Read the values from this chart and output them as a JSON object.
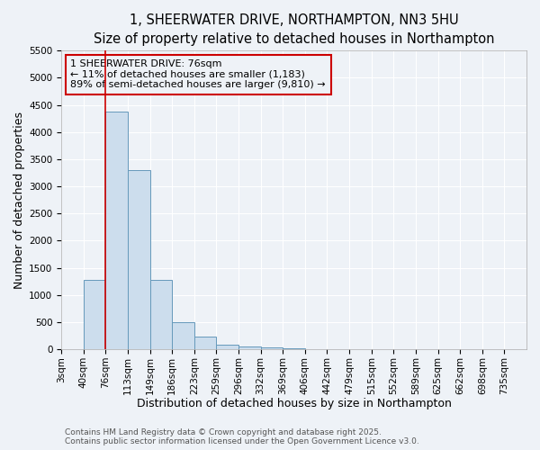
{
  "title_line1": "1, SHEERWATER DRIVE, NORTHAMPTON, NN3 5HU",
  "title_line2": "Size of property relative to detached houses in Northampton",
  "xlabel": "Distribution of detached houses by size in Northampton",
  "ylabel": "Number of detached properties",
  "annotation_line1": "1 SHEERWATER DRIVE: 76sqm",
  "annotation_line2": "← 11% of detached houses are smaller (1,183)",
  "annotation_line3": "89% of semi-detached houses are larger (9,810) →",
  "bin_labels": [
    "3sqm",
    "40sqm",
    "76sqm",
    "113sqm",
    "149sqm",
    "186sqm",
    "223sqm",
    "259sqm",
    "296sqm",
    "332sqm",
    "369sqm",
    "406sqm",
    "442sqm",
    "479sqm",
    "515sqm",
    "552sqm",
    "589sqm",
    "625sqm",
    "662sqm",
    "698sqm",
    "735sqm"
  ],
  "bar_values": [
    0,
    1280,
    4380,
    3300,
    1280,
    500,
    230,
    90,
    55,
    40,
    10,
    0,
    0,
    0,
    0,
    0,
    0,
    0,
    0,
    0,
    0
  ],
  "bar_color": "#ccdded",
  "bar_edge_color": "#6699bb",
  "red_line_index": 2,
  "red_line_color": "#cc0000",
  "ylim": [
    0,
    5500
  ],
  "yticks": [
    0,
    500,
    1000,
    1500,
    2000,
    2500,
    3000,
    3500,
    4000,
    4500,
    5000,
    5500
  ],
  "bg_color": "#eef2f7",
  "grid_color": "#ffffff",
  "footer_line1": "Contains HM Land Registry data © Crown copyright and database right 2025.",
  "footer_line2": "Contains public sector information licensed under the Open Government Licence v3.0.",
  "title_fontsize": 10.5,
  "subtitle_fontsize": 9.5,
  "axis_label_fontsize": 9,
  "tick_fontsize": 7.5,
  "annotation_fontsize": 8,
  "footer_fontsize": 6.5
}
